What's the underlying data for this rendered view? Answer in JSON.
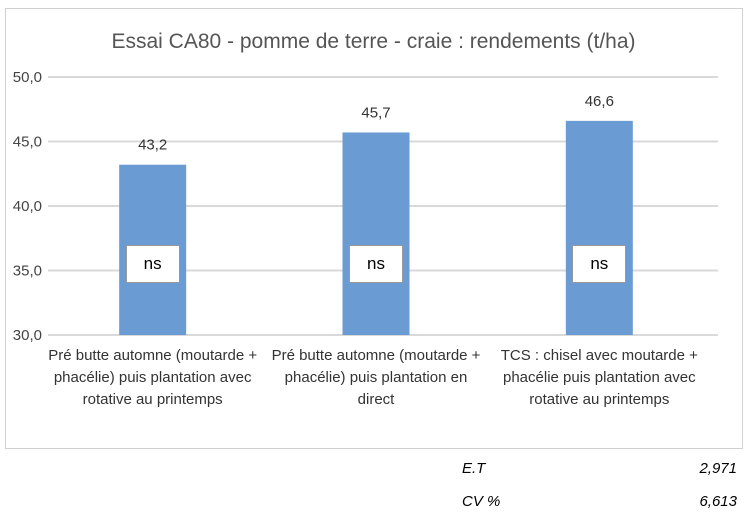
{
  "chart_data": {
    "type": "bar",
    "title": "Essai CA80 - pomme de terre - craie  : rendements (t/ha)",
    "categories": [
      "Pré butte automne (moutarde + phacélie) puis plantation avec rotative au printemps",
      "Pré butte automne (moutarde + phacélie) puis plantation en direct",
      "TCS  : chisel avec moutarde + phacélie puis plantation avec rotative au printemps"
    ],
    "values": [
      43.2,
      45.7,
      46.6
    ],
    "data_labels": [
      "43,2",
      "45,7",
      "46,6"
    ],
    "annotations": [
      "ns",
      "ns",
      "ns"
    ],
    "ylim": [
      30,
      50
    ],
    "yticks": [
      "30,0",
      "35,0",
      "40,0",
      "45,0",
      "50,0"
    ],
    "xlabel": "",
    "ylabel": "",
    "grid": true,
    "bar_color": "#6a9bd2",
    "grid_color": "#d9d9d9"
  },
  "stats": [
    {
      "label": "E.T",
      "value": "2,971"
    },
    {
      "label": "CV %",
      "value": "6,613"
    }
  ]
}
